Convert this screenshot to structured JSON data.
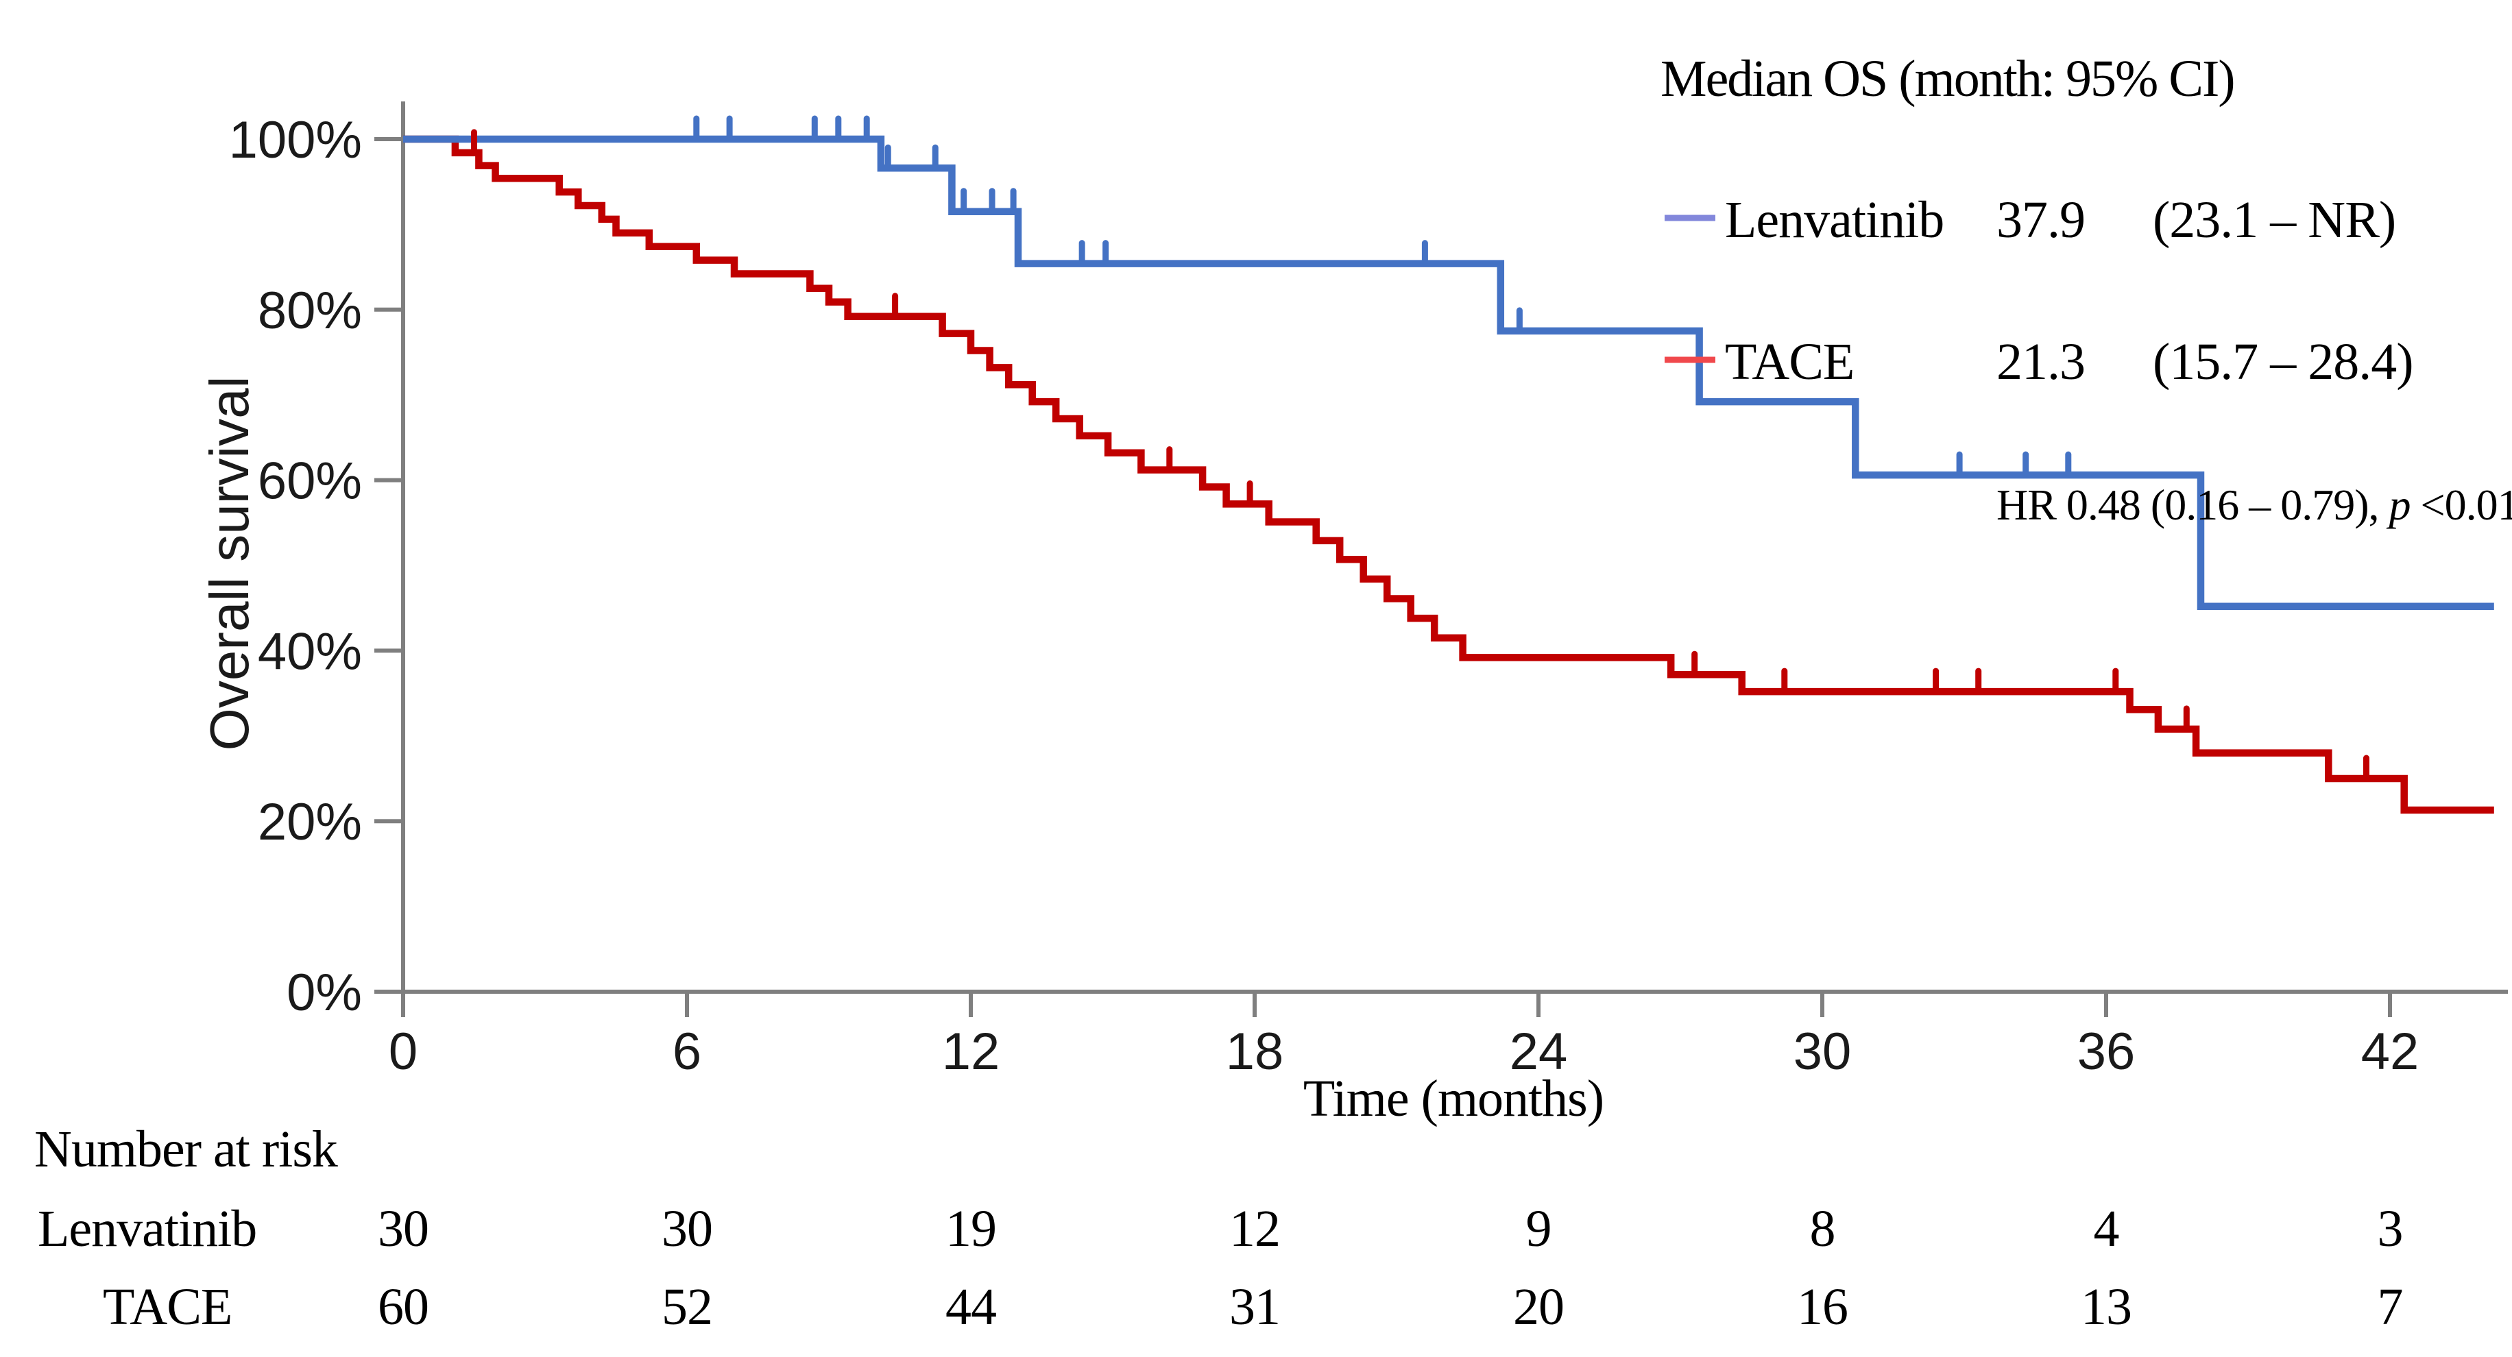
{
  "chart_data": {
    "type": "line",
    "subtype": "kaplan-meier-step-curves",
    "title": "",
    "xlabel": "Time (months)",
    "ylabel": "Overall survival",
    "xlim": [
      0,
      44.5
    ],
    "ylim": [
      0,
      100
    ],
    "grid": false,
    "xticks": [
      0,
      6,
      12,
      18,
      24,
      30,
      36,
      42
    ],
    "yticks": [
      [
        0,
        "0%"
      ],
      [
        20,
        "20%"
      ],
      [
        40,
        "40%"
      ],
      [
        60,
        "60%"
      ],
      [
        80,
        "80%"
      ],
      [
        100,
        "100%"
      ]
    ],
    "axis_color": "#7f7f7f",
    "series": [
      {
        "name": "TACE",
        "color": "#c00000",
        "end_time": 44.2,
        "steps": [
          [
            0,
            100
          ],
          [
            1.1,
            98.4
          ],
          [
            1.6,
            96.9
          ],
          [
            1.95,
            95.4
          ],
          [
            3.3,
            93.8
          ],
          [
            3.7,
            92.2
          ],
          [
            4.2,
            90.6
          ],
          [
            4.5,
            89.0
          ],
          [
            5.2,
            87.4
          ],
          [
            6.2,
            85.8
          ],
          [
            7.0,
            84.2
          ],
          [
            8.6,
            82.5
          ],
          [
            9.0,
            80.9
          ],
          [
            9.4,
            79.2
          ],
          [
            11.4,
            77.2
          ],
          [
            12.0,
            75.2
          ],
          [
            12.4,
            73.2
          ],
          [
            12.8,
            71.2
          ],
          [
            13.3,
            69.2
          ],
          [
            13.8,
            67.2
          ],
          [
            14.3,
            65.2
          ],
          [
            14.9,
            63.2
          ],
          [
            15.6,
            61.2
          ],
          [
            16.9,
            59.2
          ],
          [
            17.4,
            57.2
          ],
          [
            18.3,
            55.1
          ],
          [
            19.3,
            52.9
          ],
          [
            19.8,
            50.7
          ],
          [
            20.3,
            48.4
          ],
          [
            20.8,
            46.1
          ],
          [
            21.3,
            43.8
          ],
          [
            21.8,
            41.5
          ],
          [
            22.4,
            39.2
          ],
          [
            26.8,
            37.2
          ],
          [
            28.3,
            35.2
          ],
          [
            36.5,
            33.1
          ],
          [
            37.1,
            30.8
          ],
          [
            37.9,
            28.0
          ],
          [
            40.7,
            25.0
          ],
          [
            42.3,
            21.3
          ]
        ],
        "censor_marks": [
          [
            1.5,
            98.4
          ],
          [
            10.4,
            79.2
          ],
          [
            16.2,
            61.2
          ],
          [
            17.9,
            57.2
          ],
          [
            27.3,
            37.2
          ],
          [
            29.2,
            35.2
          ],
          [
            32.4,
            35.2
          ],
          [
            33.3,
            35.2
          ],
          [
            36.2,
            35.2
          ],
          [
            37.7,
            30.8
          ],
          [
            41.5,
            25.0
          ]
        ]
      },
      {
        "name": "Lenvatinib",
        "color": "#4472c4",
        "end_time": 44.2,
        "steps": [
          [
            0,
            100
          ],
          [
            10.1,
            96.6
          ],
          [
            11.6,
            91.5
          ],
          [
            13.0,
            85.4
          ],
          [
            23.2,
            77.5
          ],
          [
            27.4,
            69.2
          ],
          [
            30.7,
            60.6
          ],
          [
            38.0,
            45.2
          ]
        ],
        "censor_marks": [
          [
            6.2,
            100
          ],
          [
            6.9,
            100
          ],
          [
            8.7,
            100
          ],
          [
            9.2,
            100
          ],
          [
            9.8,
            100
          ],
          [
            10.25,
            96.6
          ],
          [
            11.25,
            96.6
          ],
          [
            11.85,
            91.5
          ],
          [
            12.45,
            91.5
          ],
          [
            12.9,
            91.5
          ],
          [
            14.35,
            85.4
          ],
          [
            14.85,
            85.4
          ],
          [
            21.6,
            85.4
          ],
          [
            23.6,
            77.5
          ],
          [
            32.9,
            60.6
          ],
          [
            34.3,
            60.6
          ],
          [
            35.2,
            60.6
          ]
        ]
      }
    ],
    "legend": {
      "position": "top-right",
      "title": "Median OS (month: 95% CI)",
      "entries": [
        {
          "name": "Lenvatinib",
          "median": "37.9",
          "ci": "(23.1 – NR)",
          "color": "#8287db"
        },
        {
          "name": "TACE",
          "median": "21.3",
          "ci": "(15.7 – 28.4)",
          "color": "#f0484c"
        }
      ],
      "hr_text_before_p": "HR 0.48 (0.16 – 0.79), ",
      "hr_p": "p",
      "hr_text_after_p": " <0.01"
    },
    "number_at_risk": {
      "title": "Number at risk",
      "time_points": [
        0,
        6,
        12,
        18,
        24,
        30,
        36,
        42
      ],
      "rows": [
        {
          "name": "Lenvatinib",
          "counts": [
            "30",
            "30",
            "19",
            "12",
            "9",
            "8",
            "4",
            "3"
          ]
        },
        {
          "name": "TACE",
          "counts": [
            "60",
            "52",
            "44",
            "31",
            "20",
            "16",
            "13",
            "7"
          ]
        }
      ]
    }
  }
}
